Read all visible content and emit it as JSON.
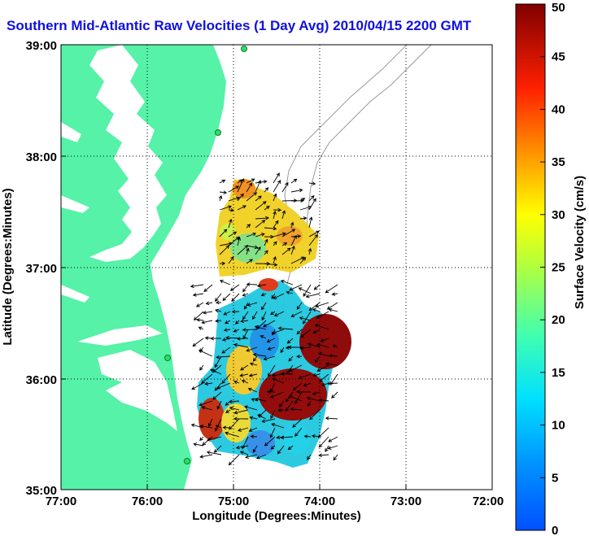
{
  "title": "Southern Mid-Atlantic Raw Velocities (1 Day Avg) 2010/04/15 2200 GMT",
  "map": {
    "xlabel": "Longitude (Degrees:Minutes)",
    "ylabel": "Latitude (Degrees:Minutes)",
    "x_ticks": [
      "77:00",
      "76:00",
      "75:00",
      "74:00",
      "73:00",
      "72:00"
    ],
    "y_ticks": [
      "39:00",
      "38:00",
      "37:00",
      "36:00",
      "35:00"
    ],
    "lon_range": [
      -77,
      -72
    ],
    "lat_range": [
      35,
      39
    ],
    "grid": "dotted",
    "land_color": "#55f2a8",
    "water_color": "#ffffff",
    "contour_color": "#9a9a9a",
    "arrow_color": "#000000"
  },
  "colorbar": {
    "label": "Surface Velocity (cm/s)",
    "ticks": [
      "0",
      "5",
      "10",
      "15",
      "20",
      "25",
      "30",
      "35",
      "40",
      "45",
      "50"
    ],
    "range": [
      0,
      50
    ],
    "colormap": "jet"
  }
}
